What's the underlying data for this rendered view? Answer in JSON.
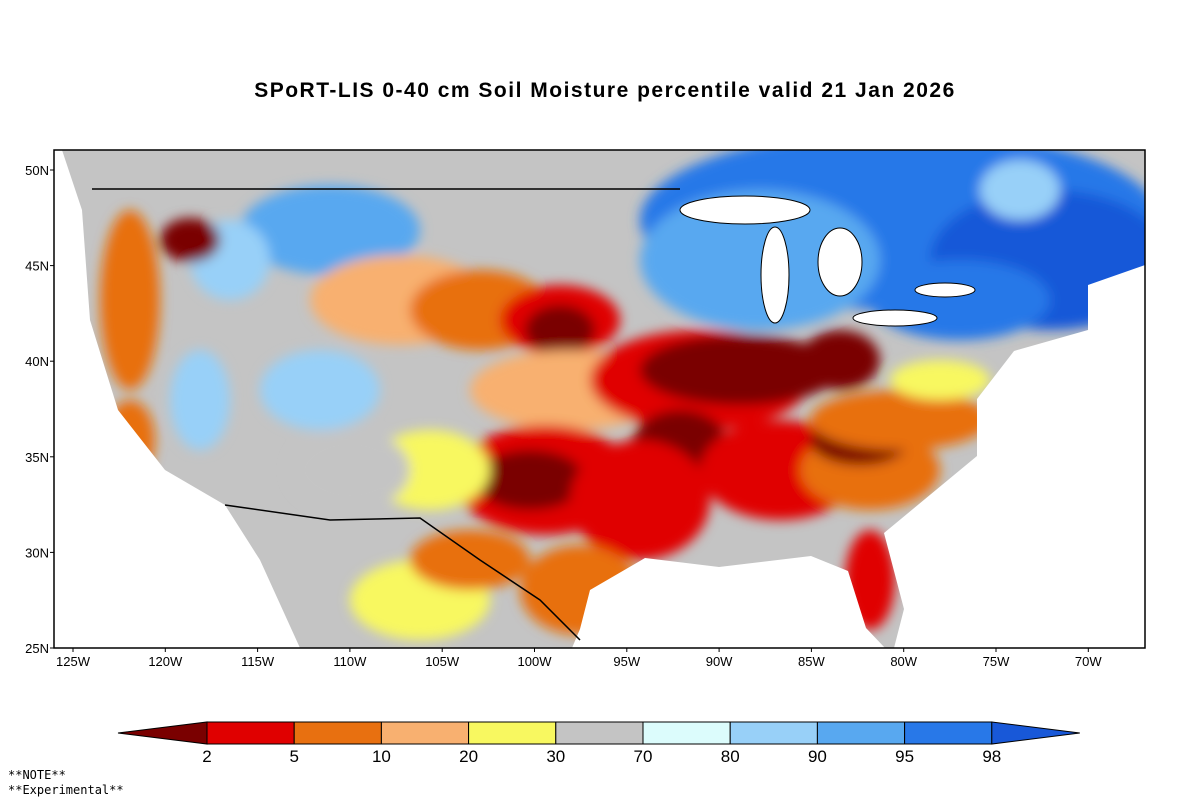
{
  "title": "SPoRT-LIS 0-40 cm Soil Moisture percentile valid 21 Jan 2026",
  "lat_labels": [
    "50N",
    "45N",
    "40N",
    "35N",
    "30N",
    "25N"
  ],
  "lon_labels": [
    "125W",
    "120W",
    "115W",
    "110W",
    "105W",
    "100W",
    "95W",
    "90W",
    "85W",
    "80W",
    "75W",
    "70W"
  ],
  "legend": {
    "colors": [
      "#7a0000",
      "#e00000",
      "#e87010",
      "#f8b070",
      "#f8f860",
      "#c4c4c4",
      "#dcfcfc",
      "#98d0f8",
      "#58a8f0",
      "#2878e8",
      "#1858d8"
    ],
    "labels": [
      "2",
      "5",
      "10",
      "20",
      "30",
      "70",
      "80",
      "90",
      "95",
      "98"
    ]
  },
  "notes": [
    "**NOTE**",
    "**Experimental**"
  ]
}
